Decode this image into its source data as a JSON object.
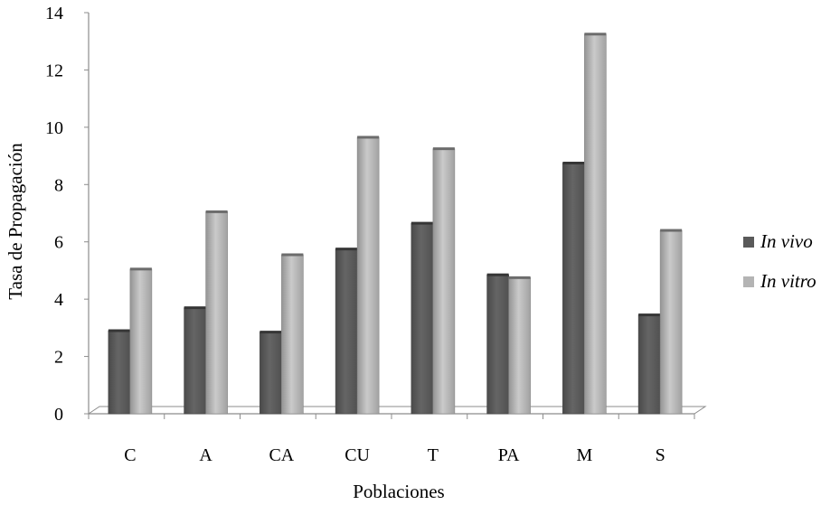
{
  "chart_data": {
    "type": "bar",
    "title": "",
    "xlabel": "Poblaciones",
    "ylabel": "Tasa de Propagación",
    "categories": [
      "C",
      "A",
      "CA",
      "CU",
      "T",
      "PA",
      "M",
      "S"
    ],
    "series": [
      {
        "name": "In vivo",
        "color": "#5a5a5a",
        "values": [
          2.9,
          3.7,
          2.85,
          5.75,
          6.65,
          4.85,
          8.75,
          3.45
        ]
      },
      {
        "name": "In vitro",
        "color": "#b4b4b4",
        "values": [
          5.05,
          7.05,
          5.55,
          9.65,
          9.25,
          4.75,
          13.25,
          6.4
        ]
      }
    ],
    "ylim": [
      0,
      14
    ],
    "yticks": [
      0,
      2,
      4,
      6,
      8,
      10,
      12,
      14
    ],
    "grid": false,
    "legend_position": "right"
  }
}
